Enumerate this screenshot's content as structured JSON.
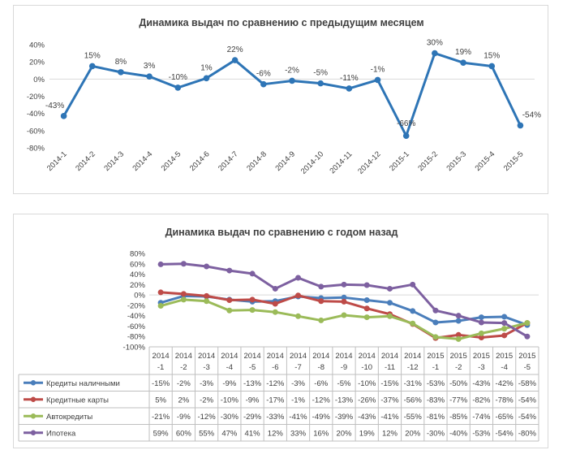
{
  "chart_data": [
    {
      "type": "line",
      "title": "Динамика выдач по сравнению с предыдущим месяцем",
      "categories": [
        "2014-1",
        "2014-2",
        "2014-3",
        "2014-4",
        "2014-5",
        "2014-6",
        "2014-7",
        "2014-8",
        "2014-9",
        "2014-10",
        "2014-11",
        "2014-12",
        "2015-1",
        "2015-2",
        "2015-3",
        "2015-4",
        "2015-5"
      ],
      "values": [
        -43,
        15,
        8,
        3,
        -10,
        1,
        22,
        -6,
        -2,
        -5,
        -11,
        -1,
        -66,
        30,
        19,
        15,
        -54
      ],
      "data_labels": [
        "-43%",
        "15%",
        "8%",
        "3%",
        "-10%",
        "1%",
        "22%",
        "-6%",
        "-2%",
        "-5%",
        "-11%",
        "-1%",
        "-66%",
        "30%",
        "19%",
        "15%",
        "-54%"
      ],
      "ylim": [
        -80,
        40
      ],
      "yticks": [
        "40%",
        "20%",
        "0%",
        "-20%",
        "-40%",
        "-60%",
        "-80%"
      ],
      "color": "#2e75b6",
      "xlabel": "",
      "ylabel": ""
    },
    {
      "type": "line",
      "title": "Динамика выдач по сравнению с годом назад",
      "categories_top": [
        "2014",
        "2014",
        "2014",
        "2014",
        "2014",
        "2014",
        "2014",
        "2014",
        "2014",
        "2014",
        "2014",
        "2014",
        "2015",
        "2015",
        "2015",
        "2015",
        "2015"
      ],
      "categories_bottom": [
        "-1",
        "-2",
        "-3",
        "-4",
        "-5",
        "-6",
        "-7",
        "-8",
        "-9",
        "-10",
        "-11",
        "-12",
        "-1",
        "-2",
        "-3",
        "-4",
        "-5"
      ],
      "ylim": [
        -100,
        80
      ],
      "yticks": [
        "80%",
        "60%",
        "40%",
        "20%",
        "0%",
        "-20%",
        "-40%",
        "-60%",
        "-80%",
        "-100%"
      ],
      "series": [
        {
          "name": "Кредиты наличными",
          "color": "#4a7ebb",
          "values": [
            -15,
            -2,
            -3,
            -9,
            -13,
            -12,
            -3,
            -6,
            -5,
            -10,
            -15,
            -31,
            -53,
            -50,
            -43,
            -42,
            -58
          ],
          "labels": [
            "-15%",
            "-2%",
            "-3%",
            "-9%",
            "-13%",
            "-12%",
            "-3%",
            "-6%",
            "-5%",
            "-10%",
            "-15%",
            "-31%",
            "-53%",
            "-50%",
            "-43%",
            "-42%",
            "-58%"
          ]
        },
        {
          "name": "Кредитные карты",
          "color": "#be4b48",
          "values": [
            5,
            2,
            -2,
            -10,
            -9,
            -17,
            -1,
            -12,
            -13,
            -26,
            -37,
            -56,
            -83,
            -77,
            -82,
            -78,
            -54
          ],
          "labels": [
            "5%",
            "2%",
            "-2%",
            "-10%",
            "-9%",
            "-17%",
            "-1%",
            "-12%",
            "-13%",
            "-26%",
            "-37%",
            "-56%",
            "-83%",
            "-77%",
            "-82%",
            "-78%",
            "-54%"
          ]
        },
        {
          "name": "Автокредиты",
          "color": "#9bbb59",
          "values": [
            -21,
            -9,
            -12,
            -30,
            -29,
            -33,
            -41,
            -49,
            -39,
            -43,
            -41,
            -55,
            -81,
            -85,
            -74,
            -65,
            -54
          ],
          "labels": [
            "-21%",
            "-9%",
            "-12%",
            "-30%",
            "-29%",
            "-33%",
            "-41%",
            "-49%",
            "-39%",
            "-43%",
            "-41%",
            "-55%",
            "-81%",
            "-85%",
            "-74%",
            "-65%",
            "-54%"
          ]
        },
        {
          "name": "Ипотека",
          "color": "#7d60a0",
          "values": [
            59,
            60,
            55,
            47,
            41,
            12,
            33,
            16,
            20,
            19,
            12,
            20,
            -30,
            -40,
            -53,
            -54,
            -80
          ],
          "labels": [
            "59%",
            "60%",
            "55%",
            "47%",
            "41%",
            "12%",
            "33%",
            "16%",
            "20%",
            "19%",
            "12%",
            "20%",
            "-30%",
            "-40%",
            "-53%",
            "-54%",
            "-80%"
          ]
        }
      ],
      "xlabel": "",
      "ylabel": ""
    }
  ]
}
